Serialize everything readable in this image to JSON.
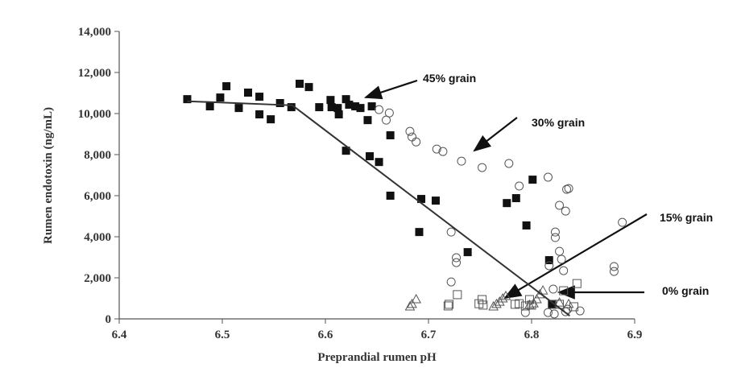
{
  "chart_data": {
    "type": "scatter",
    "xlabel": "Preprandial rumen pH",
    "ylabel": "Rumen endotoxin (ng/mL)",
    "xlim": [
      6.4,
      6.9
    ],
    "xticks": [
      6.4,
      6.5,
      6.6,
      6.7,
      6.8,
      6.9
    ],
    "ylim": [
      0,
      14000
    ],
    "yticks": [
      0,
      {
        "value": 2000,
        "label": "2,000"
      },
      {
        "value": 4000,
        "label": "4,000"
      },
      {
        "value": 6000,
        "label": "6,000"
      },
      {
        "value": 8000,
        "label": "8,000"
      },
      {
        "value": 10000,
        "label": "10,000"
      },
      {
        "value": 12000,
        "label": "12,000"
      },
      {
        "value": 14000,
        "label": "14,000"
      }
    ],
    "grid": false,
    "annotations": [
      "45% grain",
      "30% grain",
      "15% grain",
      "0% grain"
    ],
    "series": [
      {
        "marker": "filled-square",
        "color": "#111111",
        "x": [
          6.466,
          6.488,
          6.498,
          6.504,
          6.516,
          6.525,
          6.536,
          6.536,
          6.547,
          6.556,
          6.567,
          6.575,
          6.584,
          6.594,
          6.605,
          6.606,
          6.612,
          6.613,
          6.62,
          6.623,
          6.629,
          6.634,
          6.645,
          6.641,
          6.62,
          6.643,
          6.652,
          6.663,
          6.663,
          6.693,
          6.691,
          6.707,
          6.738,
          6.801,
          6.776,
          6.785,
          6.795,
          6.817,
          6.82
        ],
        "values": [
          10700,
          10350,
          10780,
          11330,
          10270,
          11020,
          10820,
          9960,
          9720,
          10510,
          10310,
          11450,
          11290,
          10310,
          10660,
          10310,
          10270,
          9960,
          10700,
          10430,
          10350,
          10270,
          10350,
          9680,
          8190,
          7920,
          7640,
          8940,
          6000,
          5840,
          4230,
          5760,
          3250,
          6780,
          5640,
          5880,
          4550,
          2860,
          700
        ]
      },
      {
        "marker": "circle",
        "color": "#555555",
        "x": [
          6.652,
          6.659,
          6.662,
          6.682,
          6.684,
          6.688,
          6.708,
          6.714,
          6.732,
          6.752,
          6.778,
          6.788,
          6.816,
          6.827,
          6.833,
          6.823,
          6.823,
          6.827,
          6.829,
          6.831,
          6.836,
          6.834,
          6.888,
          6.88,
          6.88,
          6.727,
          6.727,
          6.722,
          6.722,
          6.821,
          6.816,
          6.822,
          6.833,
          6.847,
          6.835,
          6.794,
          6.817
        ],
        "values": [
          10190,
          9680,
          10030,
          9130,
          8860,
          8620,
          8270,
          8150,
          7680,
          7370,
          7570,
          6470,
          6900,
          5530,
          5250,
          4230,
          3960,
          3290,
          2900,
          2350,
          6350,
          6310,
          4700,
          2550,
          2310,
          2980,
          2740,
          1800,
          4230,
          1450,
          310,
          240,
          350,
          390,
          470,
          310,
          2590
        ]
      },
      {
        "marker": "square",
        "color": "#555555",
        "x": [
          6.72,
          6.719,
          6.728,
          6.749,
          6.752,
          6.753,
          6.784,
          6.788,
          6.794,
          6.798,
          6.8,
          6.82,
          6.827,
          6.831,
          6.844,
          6.841
        ],
        "values": [
          710,
          630,
          1180,
          740,
          940,
          670,
          710,
          740,
          630,
          940,
          670,
          710,
          710,
          1370,
          1720,
          590
        ]
      },
      {
        "marker": "triangle",
        "color": "#555555",
        "x": [
          6.682,
          6.684,
          6.688,
          6.763,
          6.766,
          6.769,
          6.772,
          6.775,
          6.798,
          6.802,
          6.805,
          6.808,
          6.811,
          6.827,
          6.836
        ],
        "values": [
          590,
          710,
          940,
          590,
          710,
          820,
          980,
          1100,
          670,
          740,
          940,
          1180,
          1370,
          780,
          710
        ]
      },
      {
        "marker": "line",
        "color": "#333333",
        "x": [
          6.466,
          6.568,
          6.837
        ],
        "values": [
          10600,
          10400,
          150
        ]
      }
    ]
  }
}
